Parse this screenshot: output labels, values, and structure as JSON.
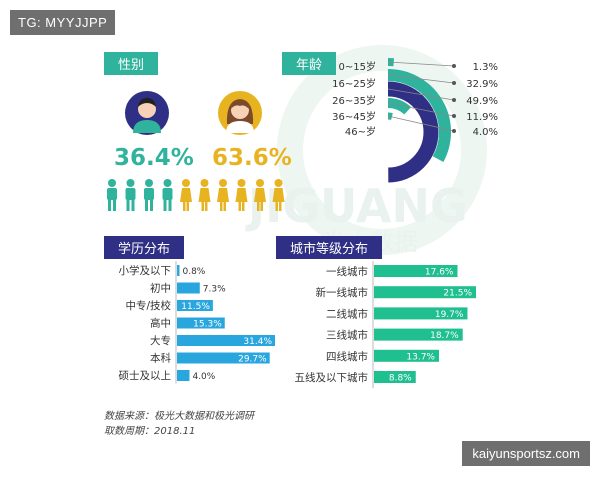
{
  "overlay": {
    "tag": "TG: MYYJJPP",
    "watermark_url": "kaiyunsportsz.com",
    "brand_watermark": "JIGUANG",
    "brand_watermark_cn": "光大数据"
  },
  "colors": {
    "teal": "#2fb39c",
    "navy": "#2f2f86",
    "gold": "#e8b321",
    "bar_blue": "#2aa6df",
    "bar_green": "#1fbf8f"
  },
  "chart_data": [
    {
      "type": "pictogram",
      "title": "性别",
      "series": [
        {
          "name": "male",
          "value": 36.4,
          "label": "36.4%",
          "icon": "male-person-icon"
        },
        {
          "name": "female",
          "value": 63.6,
          "label": "63.6%",
          "icon": "female-person-icon"
        }
      ],
      "icons_male": 4,
      "icons_female": 6
    },
    {
      "type": "pie",
      "title": "年龄",
      "categories": [
        "0~15岁",
        "16~25岁",
        "26~35岁",
        "36~45岁",
        "46~岁"
      ],
      "values": [
        1.3,
        32.9,
        49.9,
        11.9,
        4.0
      ],
      "labels": [
        "1.3%",
        "32.9%",
        "49.9%",
        "11.9%",
        "4.0%"
      ]
    },
    {
      "type": "bar",
      "title": "学历分布",
      "categories": [
        "小学及以下",
        "初中",
        "中专/技校",
        "高中",
        "大专",
        "本科",
        "硕士及以上"
      ],
      "values": [
        0.8,
        7.3,
        11.5,
        15.3,
        31.4,
        29.7,
        4.0
      ],
      "labels": [
        "0.8%",
        "7.3%",
        "11.5%",
        "15.3%",
        "31.4%",
        "29.7%",
        "4.0%"
      ]
    },
    {
      "type": "bar",
      "title": "城市等级分布",
      "categories": [
        "一线城市",
        "新一线城市",
        "二线城市",
        "三线城市",
        "四线城市",
        "五线及以下城市"
      ],
      "values": [
        17.6,
        21.5,
        19.7,
        18.7,
        13.7,
        8.8
      ],
      "labels": [
        "17.6%",
        "21.5%",
        "19.7%",
        "18.7%",
        "13.7%",
        "8.8%"
      ]
    }
  ],
  "footer": {
    "source": "数据来源：极光大数据和极光调研",
    "date": "取数周期：2018.11"
  }
}
